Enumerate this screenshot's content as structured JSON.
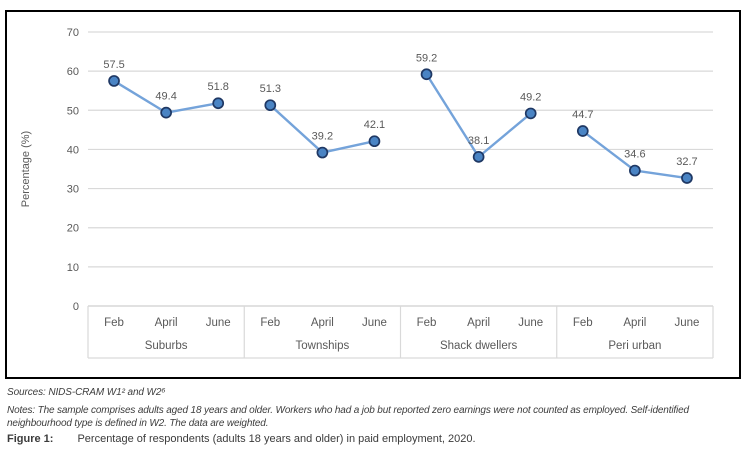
{
  "chart_data": {
    "type": "line",
    "title": "",
    "xlabel": "",
    "ylabel": "Percentage (%)",
    "ylim": [
      0,
      70
    ],
    "yticks": [
      0,
      10,
      20,
      30,
      40,
      50,
      60,
      70
    ],
    "grid": true,
    "legend_position": "none",
    "months": [
      "Feb",
      "April",
      "June"
    ],
    "groups": [
      "Suburbs",
      "Townships",
      "Shack dwellers",
      "Peri urban"
    ],
    "series": [
      {
        "group": "Suburbs",
        "x": [
          "Feb",
          "April",
          "June"
        ],
        "values": [
          57.5,
          49.4,
          51.8
        ]
      },
      {
        "group": "Townships",
        "x": [
          "Feb",
          "April",
          "June"
        ],
        "values": [
          51.3,
          39.2,
          42.1
        ]
      },
      {
        "group": "Shack dwellers",
        "x": [
          "Feb",
          "April",
          "June"
        ],
        "values": [
          59.2,
          38.1,
          49.2
        ]
      },
      {
        "group": "Peri urban",
        "x": [
          "Feb",
          "April",
          "June"
        ],
        "values": [
          44.7,
          34.6,
          32.7
        ]
      }
    ],
    "colors": {
      "line": "#74a3da",
      "marker_fill": "#4a84c4",
      "marker_stroke": "#1f3864",
      "gridline": "#d9d9d9",
      "axis_line": "#cfcfcf",
      "text": "#595959",
      "frame_border": "#000000"
    }
  },
  "footer": {
    "sources": "Sources: NIDS-CRAM W1² and W2⁶",
    "notes": "Notes: The sample comprises adults aged 18 years and older. Workers who had a job but reported zero earnings were not counted as employed. Self-identified neighbourhood type is defined in W2. The data are weighted.",
    "figure_label": "Figure 1:",
    "figure_caption": "Percentage of respondents (adults 18 years and older) in paid employment, 2020."
  }
}
